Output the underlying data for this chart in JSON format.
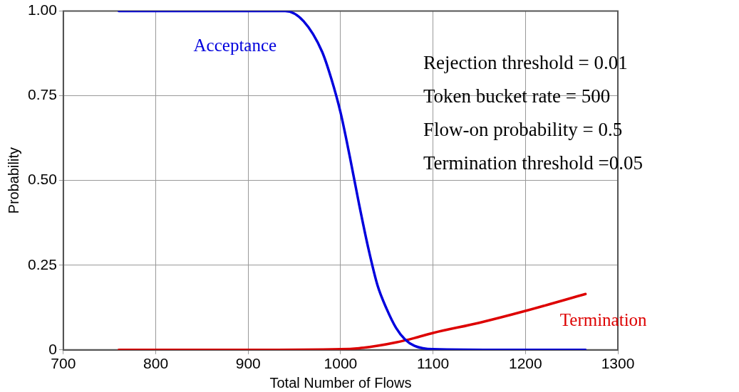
{
  "chart_data": {
    "type": "line",
    "xlabel": "Total Number of Flows",
    "ylabel": "Probability",
    "xlim": [
      700,
      1300
    ],
    "xticks": [
      700,
      800,
      900,
      1000,
      1100,
      1200,
      1300
    ],
    "ylim": [
      0,
      1
    ],
    "yticks": [
      {
        "value": 0,
        "label": "0"
      },
      {
        "value": 0.25,
        "label": "0.25"
      },
      {
        "value": 0.5,
        "label": "0.50"
      },
      {
        "value": 0.75,
        "label": "0.75"
      },
      {
        "value": 1,
        "label": "1.00"
      }
    ],
    "grid": true,
    "legend": false,
    "marker": "none",
    "line_style": "solid",
    "series": [
      {
        "name": "Acceptance",
        "color": "#0000dd",
        "x": [
          760,
          850,
          940,
          960,
          980,
          990,
          1000,
          1010,
          1020,
          1030,
          1040,
          1050,
          1060,
          1070,
          1080,
          1100,
          1180,
          1265
        ],
        "values": [
          1,
          1,
          1,
          0.97,
          0.88,
          0.8,
          0.7,
          0.57,
          0.43,
          0.3,
          0.19,
          0.12,
          0.065,
          0.03,
          0.012,
          0.002,
          0,
          0
        ]
      },
      {
        "name": "Termination",
        "color": "#dd0000",
        "x": [
          760,
          900,
          1000,
          1020,
          1040,
          1060,
          1080,
          1100,
          1150,
          1200,
          1265
        ],
        "values": [
          0,
          0,
          0.002,
          0.005,
          0.012,
          0.022,
          0.035,
          0.05,
          0.08,
          0.115,
          0.165
        ]
      }
    ],
    "annotations": [
      "Rejection threshold = 0.01",
      "Token bucket rate = 500",
      "Flow-on probability = 0.5",
      "Termination threshold =0.05"
    ]
  }
}
